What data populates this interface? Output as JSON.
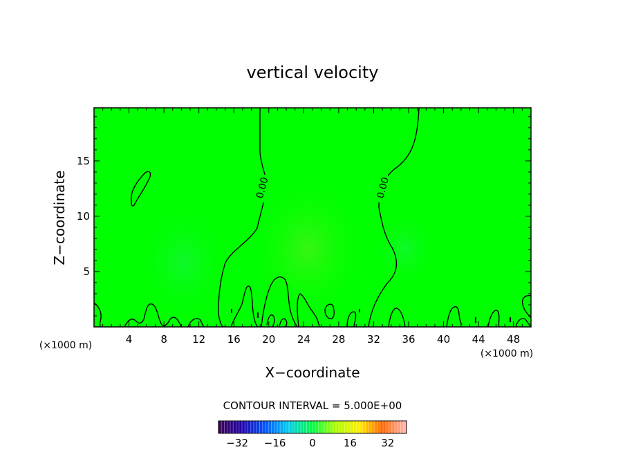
{
  "chart_data": {
    "type": "heatmap",
    "title": "vertical velocity",
    "xlabel": "X−coordinate",
    "ylabel": "Z−coordinate",
    "x_unit_left": "(×1000 m)",
    "x_unit_right": "(×1000 m)",
    "xlim": [
      0,
      50
    ],
    "ylim": [
      0,
      19.8
    ],
    "x_ticks": [
      4,
      8,
      12,
      16,
      20,
      24,
      28,
      32,
      36,
      40,
      44,
      48
    ],
    "y_ticks": [
      5,
      10,
      15
    ],
    "contour_interval_text": "CONTOUR INTERVAL = 5.000E+00",
    "contour_labels": [
      {
        "text": "0.00",
        "x": 19.2,
        "y": 12.5
      },
      {
        "text": "0.00",
        "x": 33.0,
        "y": 12.5
      }
    ],
    "colorbar": {
      "range": [
        -40,
        40
      ],
      "tick_values": [
        -32,
        -16,
        0,
        16,
        32
      ],
      "tick_labels": [
        "−32",
        "−16",
        "0",
        "16",
        "32"
      ]
    },
    "colors": {
      "field_base": "#00ff00",
      "contour": "#000000"
    }
  }
}
